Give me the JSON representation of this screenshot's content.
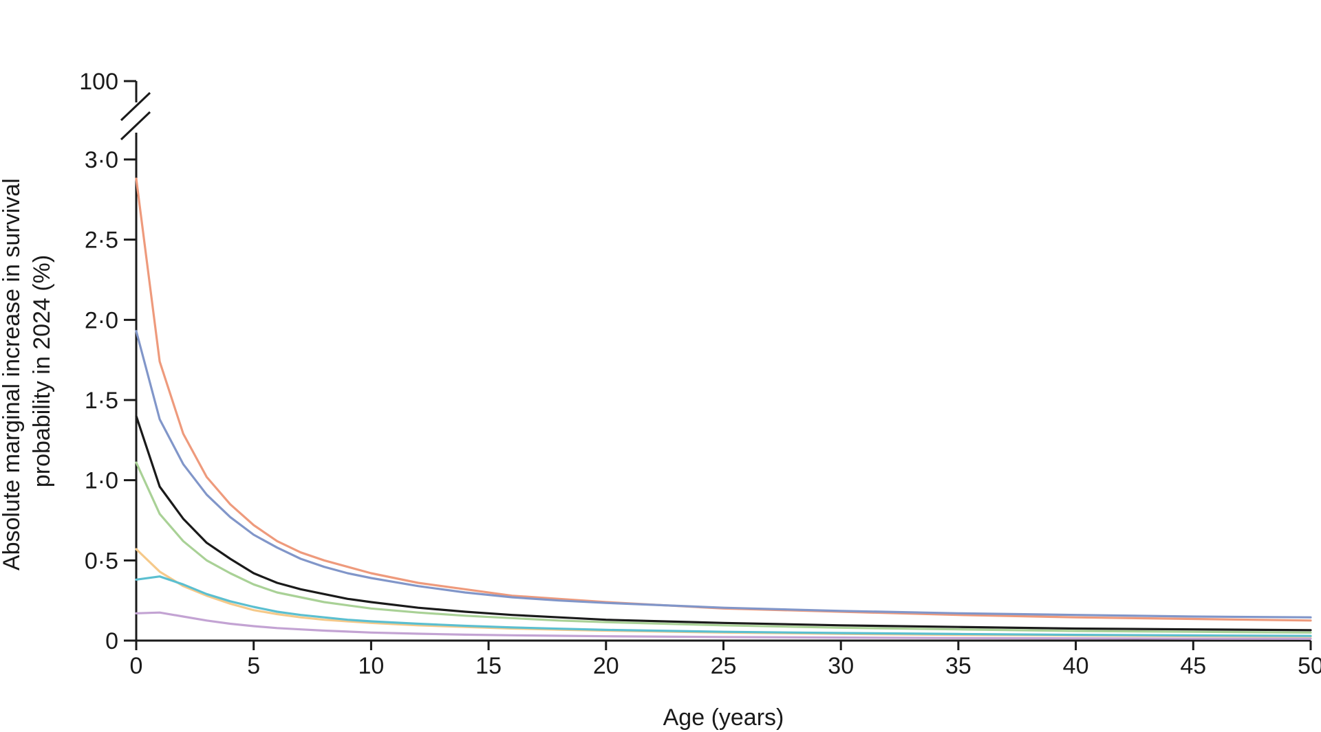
{
  "chart_data": {
    "type": "line",
    "title": "",
    "xlabel": "Age (years)",
    "ylabel": "Absolute marginal increase in survival probability in 2024 (%)",
    "ylabel_lines": [
      "Absolute marginal increase in survival",
      "probability in 2024 (%)"
    ],
    "xlim": [
      0,
      50
    ],
    "ylim": [
      0,
      3.0
    ],
    "y_break": true,
    "y_break_top_value": 100,
    "x_ticks": [
      0,
      5,
      10,
      15,
      20,
      25,
      30,
      35,
      40,
      45,
      50
    ],
    "x_tick_labels": [
      "0",
      "5",
      "10",
      "15",
      "20",
      "25",
      "30",
      "35",
      "40",
      "45",
      "50"
    ],
    "y_ticks": [
      0,
      0.5,
      1.0,
      1.5,
      2.0,
      2.5,
      3.0
    ],
    "y_tick_labels": [
      "0",
      "0·5",
      "1·0",
      "1·5",
      "2·0",
      "2·5",
      "3·0"
    ],
    "y_break_label": "100",
    "grid": false,
    "legend": "none",
    "x": [
      0,
      1,
      2,
      3,
      4,
      5,
      6,
      7,
      8,
      9,
      10,
      12,
      14,
      16,
      18,
      20,
      25,
      30,
      35,
      40,
      45,
      50
    ],
    "series": [
      {
        "color": "#ee9a7c",
        "values": [
          2.88,
          1.74,
          1.29,
          1.02,
          0.85,
          0.72,
          0.62,
          0.55,
          0.5,
          0.46,
          0.42,
          0.36,
          0.32,
          0.28,
          0.26,
          0.24,
          0.2,
          0.18,
          0.16,
          0.145,
          0.135,
          0.125
        ]
      },
      {
        "color": "#8196c9",
        "values": [
          1.93,
          1.38,
          1.1,
          0.91,
          0.77,
          0.66,
          0.58,
          0.51,
          0.46,
          0.42,
          0.39,
          0.34,
          0.3,
          0.27,
          0.25,
          0.235,
          0.205,
          0.185,
          0.17,
          0.16,
          0.15,
          0.145
        ]
      },
      {
        "color": "#1a1a1a",
        "values": [
          1.4,
          0.96,
          0.76,
          0.61,
          0.51,
          0.42,
          0.36,
          0.32,
          0.29,
          0.26,
          0.24,
          0.205,
          0.18,
          0.16,
          0.145,
          0.13,
          0.11,
          0.095,
          0.085,
          0.075,
          0.07,
          0.065
        ]
      },
      {
        "color": "#a9d196",
        "values": [
          1.11,
          0.79,
          0.62,
          0.5,
          0.42,
          0.35,
          0.3,
          0.27,
          0.24,
          0.22,
          0.2,
          0.175,
          0.155,
          0.14,
          0.125,
          0.115,
          0.095,
          0.08,
          0.07,
          0.06,
          0.055,
          0.05
        ]
      },
      {
        "color": "#f5c98a",
        "values": [
          0.57,
          0.43,
          0.34,
          0.28,
          0.23,
          0.19,
          0.165,
          0.145,
          0.13,
          0.12,
          0.11,
          0.095,
          0.085,
          0.075,
          0.068,
          0.062,
          0.05,
          0.042,
          0.036,
          0.032,
          0.028,
          0.025
        ]
      },
      {
        "color": "#5bbfd0",
        "values": [
          0.38,
          0.4,
          0.35,
          0.29,
          0.245,
          0.21,
          0.18,
          0.16,
          0.145,
          0.13,
          0.12,
          0.105,
          0.092,
          0.082,
          0.074,
          0.067,
          0.055,
          0.047,
          0.041,
          0.036,
          0.032,
          0.029
        ]
      },
      {
        "color": "#c3a3d3",
        "values": [
          0.17,
          0.175,
          0.15,
          0.125,
          0.105,
          0.09,
          0.078,
          0.07,
          0.062,
          0.056,
          0.05,
          0.043,
          0.037,
          0.033,
          0.03,
          0.027,
          0.022,
          0.019,
          0.016,
          0.014,
          0.012,
          0.011
        ]
      }
    ]
  }
}
